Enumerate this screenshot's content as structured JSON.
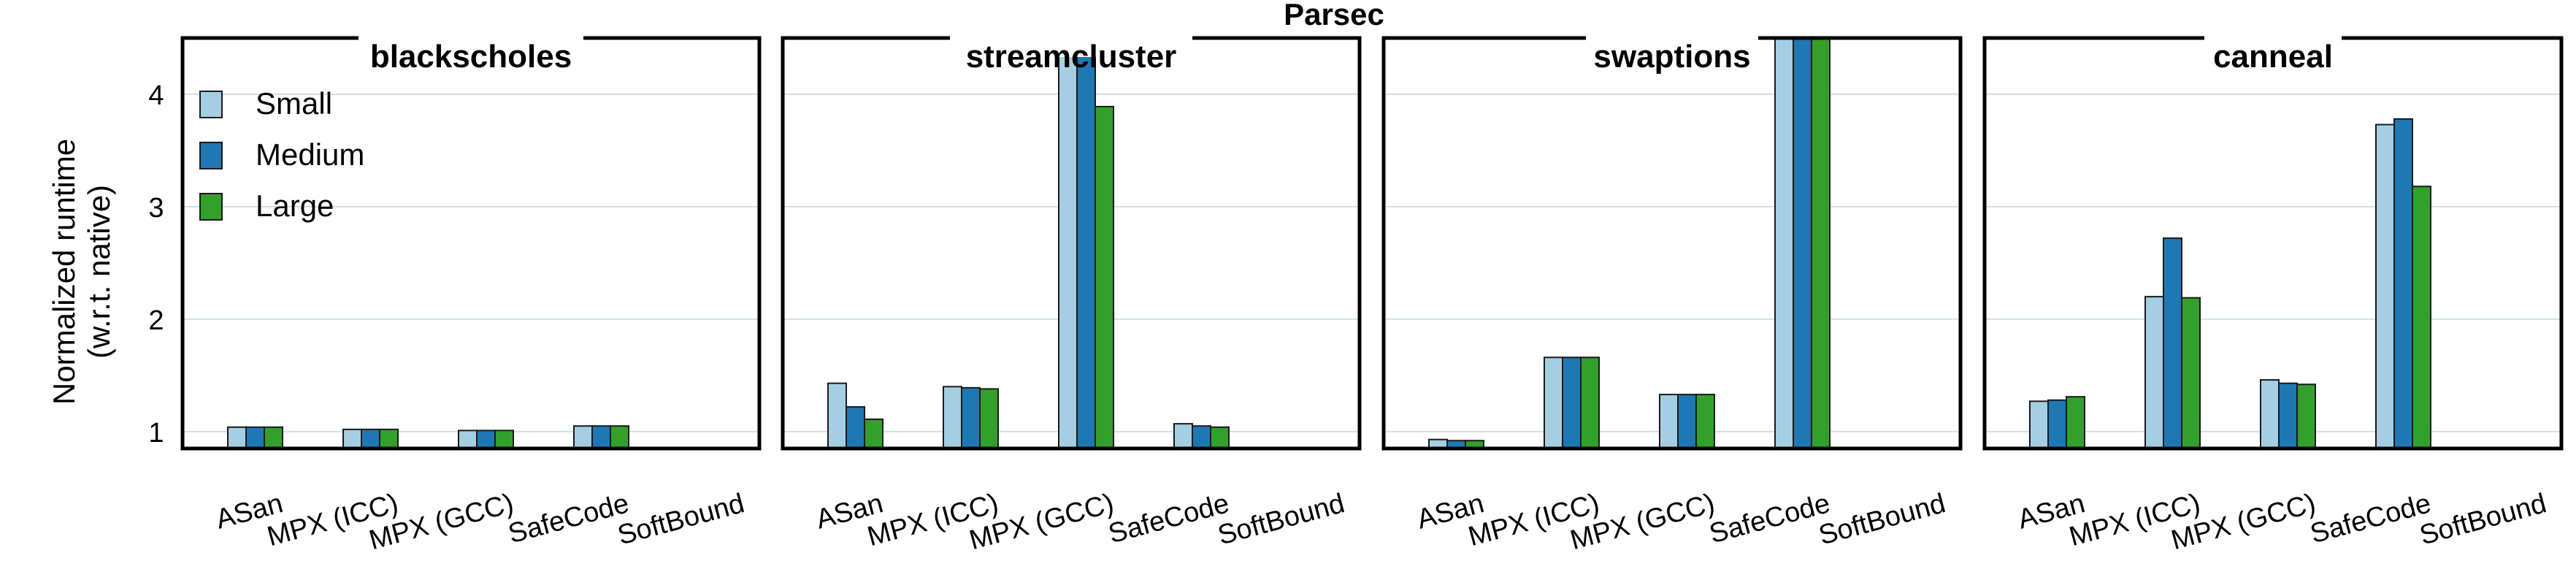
{
  "figure_title": "Parsec",
  "ylabel_line1": "Normalized runtime",
  "ylabel_line2": "(w.r.t. native)",
  "colors": {
    "Small": "#a6cee3",
    "Medium": "#1f78b4",
    "Large": "#33a02c"
  },
  "chart_data": [
    {
      "type": "bar",
      "title": "blackscholes",
      "categories": [
        "ASan",
        "MPX (ICC)",
        "MPX (GCC)",
        "SafeCode",
        "SoftBound"
      ],
      "series": [
        {
          "name": "Small",
          "values": [
            1.04,
            1.02,
            1.01,
            1.05,
            null
          ]
        },
        {
          "name": "Medium",
          "values": [
            1.04,
            1.02,
            1.01,
            1.05,
            null
          ]
        },
        {
          "name": "Large",
          "values": [
            1.04,
            1.02,
            1.01,
            1.05,
            null
          ]
        }
      ],
      "ylim": [
        0.85,
        4.5
      ],
      "yticks": [
        1,
        2,
        3,
        4
      ],
      "grid": true,
      "legend": "top-left"
    },
    {
      "type": "bar",
      "title": "streamcluster",
      "categories": [
        "ASan",
        "MPX (ICC)",
        "MPX (GCC)",
        "SafeCode",
        "SoftBound"
      ],
      "series": [
        {
          "name": "Small",
          "values": [
            1.43,
            1.4,
            4.5,
            1.07,
            null
          ]
        },
        {
          "name": "Medium",
          "values": [
            1.22,
            1.39,
            4.5,
            1.05,
            null
          ]
        },
        {
          "name": "Large",
          "values": [
            1.11,
            1.38,
            3.89,
            1.04,
            null
          ]
        }
      ],
      "ylim": [
        0.85,
        4.5
      ],
      "yticks": [
        1,
        2,
        3,
        4
      ],
      "grid": true
    },
    {
      "type": "bar",
      "title": "swaptions",
      "categories": [
        "ASan",
        "MPX (ICC)",
        "MPX (GCC)",
        "SafeCode",
        "SoftBound"
      ],
      "series": [
        {
          "name": "Small",
          "values": [
            0.93,
            1.66,
            1.33,
            4.5,
            null
          ]
        },
        {
          "name": "Medium",
          "values": [
            0.92,
            1.66,
            1.33,
            4.5,
            null
          ]
        },
        {
          "name": "Large",
          "values": [
            0.92,
            1.66,
            1.33,
            4.5,
            null
          ]
        }
      ],
      "ylim": [
        0.85,
        4.5
      ],
      "yticks": [
        1,
        2,
        3,
        4
      ],
      "grid": true
    },
    {
      "type": "bar",
      "title": "canneal",
      "categories": [
        "ASan",
        "MPX (ICC)",
        "MPX (GCC)",
        "SafeCode",
        "SoftBound"
      ],
      "series": [
        {
          "name": "Small",
          "values": [
            1.27,
            2.2,
            1.46,
            3.73,
            null
          ]
        },
        {
          "name": "Medium",
          "values": [
            1.28,
            2.72,
            1.43,
            3.78,
            null
          ]
        },
        {
          "name": "Large",
          "values": [
            1.31,
            2.19,
            1.42,
            3.18,
            null
          ]
        }
      ],
      "ylim": [
        0.85,
        4.5
      ],
      "yticks": [
        1,
        2,
        3,
        4
      ],
      "grid": true
    }
  ]
}
